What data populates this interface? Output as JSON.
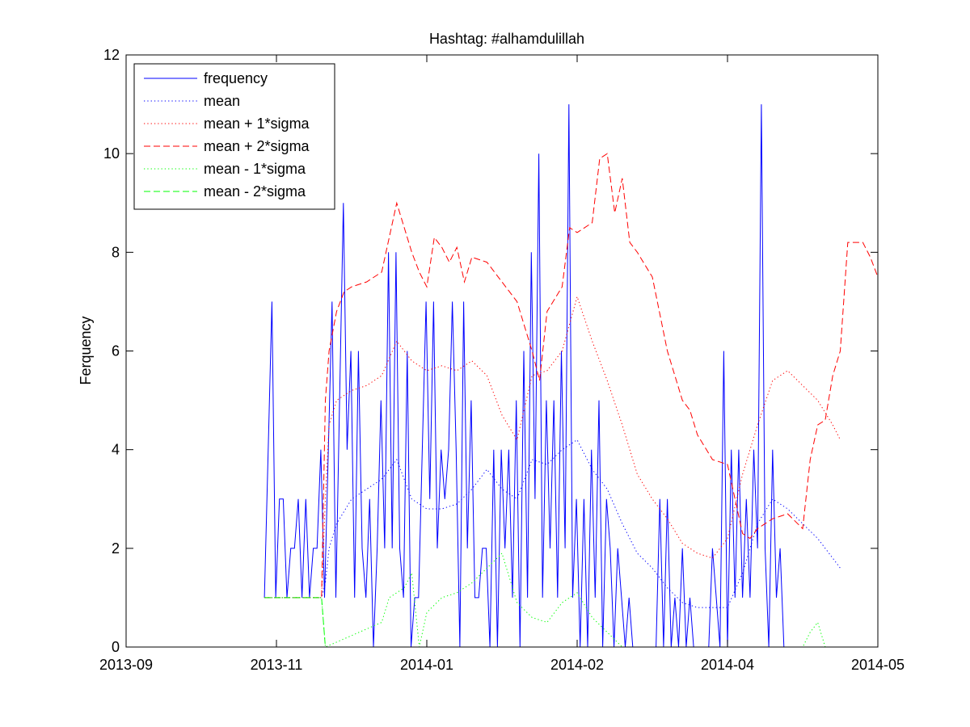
{
  "chart_data": {
    "type": "line",
    "title": "Hashtag: #alhamdulillah",
    "xlabel": "",
    "ylabel": "Ferquency",
    "xlim": [
      0,
      100
    ],
    "ylim": [
      0,
      12
    ],
    "xticks": [
      {
        "pos": 0,
        "label": "2013-09"
      },
      {
        "pos": 20,
        "label": "2013-11"
      },
      {
        "pos": 40,
        "label": "2014-01"
      },
      {
        "pos": 60,
        "label": "2014-02"
      },
      {
        "pos": 80,
        "label": "2014-04"
      },
      {
        "pos": 100,
        "label": "2014-05"
      }
    ],
    "yticks": [
      0,
      2,
      4,
      6,
      8,
      10,
      12
    ],
    "grid": false,
    "legend_position": "top-left",
    "series": [
      {
        "name": "frequency",
        "color": "#0000ff",
        "style": "solid",
        "points": [
          [
            18.4,
            1
          ],
          [
            18.9,
            4
          ],
          [
            19.4,
            7
          ],
          [
            19.9,
            1
          ],
          [
            20.4,
            3
          ],
          [
            20.9,
            3
          ],
          [
            21.4,
            1
          ],
          [
            21.9,
            2
          ],
          [
            22.4,
            2
          ],
          [
            22.9,
            3
          ],
          [
            23.4,
            1
          ],
          [
            23.9,
            3
          ],
          [
            24.4,
            1
          ],
          [
            24.9,
            2
          ],
          [
            25.4,
            2
          ],
          [
            25.9,
            4
          ],
          [
            26.4,
            1
          ],
          [
            26.9,
            4
          ],
          [
            27.4,
            7
          ],
          [
            27.9,
            1
          ],
          [
            28.4,
            5
          ],
          [
            28.9,
            9
          ],
          [
            29.4,
            4
          ],
          [
            29.9,
            6
          ],
          [
            30.4,
            1
          ],
          [
            30.9,
            6
          ],
          [
            31.4,
            2
          ],
          [
            31.9,
            1
          ],
          [
            32.4,
            3
          ],
          [
            32.9,
            0
          ],
          [
            33.4,
            2
          ],
          [
            33.9,
            5
          ],
          [
            34.4,
            2
          ],
          [
            34.9,
            8
          ],
          [
            35.4,
            2
          ],
          [
            35.9,
            8
          ],
          [
            36.4,
            2
          ],
          [
            36.9,
            1
          ],
          [
            37.4,
            6
          ],
          [
            37.9,
            0
          ],
          [
            38.4,
            1
          ],
          [
            38.9,
            1
          ],
          [
            39.4,
            4
          ],
          [
            39.9,
            7
          ],
          [
            40.4,
            3
          ],
          [
            40.9,
            7
          ],
          [
            41.4,
            2
          ],
          [
            41.9,
            4
          ],
          [
            42.4,
            3
          ],
          [
            42.9,
            4
          ],
          [
            43.4,
            7
          ],
          [
            43.9,
            4
          ],
          [
            44.4,
            0
          ],
          [
            44.9,
            7
          ],
          [
            45.4,
            2
          ],
          [
            45.9,
            5
          ],
          [
            46.4,
            1
          ],
          [
            46.9,
            1
          ],
          [
            47.4,
            2
          ],
          [
            47.9,
            2
          ],
          [
            48.4,
            0
          ],
          [
            48.9,
            4
          ],
          [
            49.4,
            0
          ],
          [
            49.9,
            4
          ],
          [
            50.4,
            2
          ],
          [
            50.9,
            4
          ],
          [
            51.4,
            1
          ],
          [
            51.9,
            5
          ],
          [
            52.4,
            0
          ],
          [
            52.9,
            6
          ],
          [
            53.4,
            1
          ],
          [
            53.9,
            8
          ],
          [
            54.4,
            3
          ],
          [
            54.9,
            10
          ],
          [
            55.4,
            1
          ],
          [
            55.9,
            5
          ],
          [
            56.4,
            2
          ],
          [
            56.9,
            5
          ],
          [
            57.4,
            1
          ],
          [
            57.9,
            6
          ],
          [
            58.4,
            2
          ],
          [
            58.9,
            11
          ],
          [
            59.4,
            1
          ],
          [
            59.9,
            3
          ],
          [
            60.4,
            0
          ],
          [
            60.9,
            3
          ],
          [
            61.4,
            0
          ],
          [
            61.9,
            4
          ],
          [
            62.4,
            1
          ],
          [
            62.9,
            5
          ],
          [
            63.4,
            0
          ],
          [
            63.9,
            3
          ],
          [
            64.4,
            2
          ],
          [
            64.9,
            0
          ],
          [
            65.4,
            2
          ],
          [
            65.9,
            1
          ],
          [
            66.4,
            0
          ],
          [
            66.9,
            1
          ],
          [
            67.4,
            0
          ],
          [
            67.9,
            0
          ],
          [
            68.4,
            0
          ],
          [
            70.5,
            0
          ],
          [
            71.0,
            3
          ],
          [
            71.5,
            0
          ],
          [
            72.0,
            3
          ],
          [
            72.5,
            0
          ],
          [
            73.0,
            1
          ],
          [
            73.5,
            0
          ],
          [
            74.0,
            2
          ],
          [
            74.5,
            0
          ],
          [
            75.0,
            1
          ],
          [
            75.5,
            0
          ],
          [
            76.0,
            0
          ],
          [
            77.5,
            0
          ],
          [
            78.0,
            2
          ],
          [
            78.5,
            1
          ],
          [
            79.0,
            0
          ],
          [
            79.5,
            6
          ],
          [
            80.0,
            0
          ],
          [
            80.5,
            4
          ],
          [
            81.0,
            1
          ],
          [
            81.5,
            4
          ],
          [
            82.0,
            1
          ],
          [
            82.5,
            3
          ],
          [
            83.0,
            1
          ],
          [
            83.5,
            4
          ],
          [
            84.0,
            2
          ],
          [
            84.5,
            11
          ],
          [
            85.0,
            2
          ],
          [
            85.5,
            0
          ],
          [
            86.0,
            4
          ],
          [
            86.5,
            1
          ],
          [
            87.0,
            2
          ],
          [
            87.5,
            0
          ]
        ]
      },
      {
        "name": "mean",
        "color": "#0000ff",
        "style": "dotted",
        "points": [
          [
            18.4,
            1
          ],
          [
            26.0,
            1
          ],
          [
            26.5,
            1.3
          ],
          [
            27,
            2
          ],
          [
            28,
            2.5
          ],
          [
            30,
            3
          ],
          [
            32,
            3.2
          ],
          [
            34,
            3.4
          ],
          [
            36,
            3.8
          ],
          [
            38,
            3.0
          ],
          [
            40,
            2.8
          ],
          [
            42,
            2.8
          ],
          [
            44,
            2.9
          ],
          [
            46,
            3.2
          ],
          [
            48,
            3.6
          ],
          [
            50,
            3.2
          ],
          [
            52,
            3.0
          ],
          [
            54,
            3.8
          ],
          [
            56,
            3.7
          ],
          [
            58,
            4.0
          ],
          [
            60,
            4.2
          ],
          [
            62,
            3.6
          ],
          [
            64,
            3.2
          ],
          [
            66,
            2.5
          ],
          [
            68,
            1.9
          ],
          [
            70,
            1.6
          ],
          [
            72,
            1.2
          ],
          [
            74,
            0.9
          ],
          [
            76,
            0.8
          ],
          [
            78,
            0.8
          ],
          [
            80,
            0.8
          ],
          [
            82,
            1.5
          ],
          [
            84,
            2.5
          ],
          [
            86,
            3.0
          ],
          [
            88,
            2.8
          ],
          [
            90,
            2.5
          ],
          [
            92,
            2.2
          ],
          [
            94,
            1.8
          ],
          [
            95,
            1.6
          ]
        ]
      },
      {
        "name": "mean + 1*sigma",
        "color": "#ff0000",
        "style": "dotted",
        "points": [
          [
            18.4,
            1
          ],
          [
            26.0,
            1
          ],
          [
            26.5,
            3
          ],
          [
            27,
            4.5
          ],
          [
            28,
            5
          ],
          [
            30,
            5.2
          ],
          [
            32,
            5.3
          ],
          [
            34,
            5.5
          ],
          [
            36,
            6.2
          ],
          [
            38,
            5.8
          ],
          [
            40,
            5.6
          ],
          [
            42,
            5.7
          ],
          [
            44,
            5.6
          ],
          [
            46,
            5.8
          ],
          [
            48,
            5.5
          ],
          [
            50,
            4.7
          ],
          [
            52,
            4.2
          ],
          [
            54,
            5.5
          ],
          [
            56,
            5.6
          ],
          [
            58,
            6.0
          ],
          [
            60,
            7.1
          ],
          [
            62,
            6.2
          ],
          [
            64,
            5.4
          ],
          [
            66,
            4.5
          ],
          [
            68,
            3.5
          ],
          [
            70,
            3.0
          ],
          [
            72,
            2.6
          ],
          [
            74,
            2.1
          ],
          [
            76,
            1.9
          ],
          [
            78,
            1.8
          ],
          [
            80,
            2.2
          ],
          [
            82,
            3.5
          ],
          [
            84,
            4.5
          ],
          [
            86,
            5.4
          ],
          [
            88,
            5.6
          ],
          [
            90,
            5.3
          ],
          [
            92,
            5.0
          ],
          [
            94,
            4.5
          ],
          [
            95,
            4.2
          ]
        ]
      },
      {
        "name": "mean + 2*sigma",
        "color": "#ff0000",
        "style": "dashed",
        "points": [
          [
            18.4,
            1
          ],
          [
            26.0,
            1
          ],
          [
            26.5,
            5
          ],
          [
            27,
            6.0
          ],
          [
            28,
            6.8
          ],
          [
            29,
            7.2
          ],
          [
            30,
            7.3
          ],
          [
            32,
            7.4
          ],
          [
            34,
            7.6
          ],
          [
            36,
            9.0
          ],
          [
            38,
            8.0
          ],
          [
            39,
            7.6
          ],
          [
            40,
            7.3
          ],
          [
            41,
            8.3
          ],
          [
            42,
            8.1
          ],
          [
            43,
            7.8
          ],
          [
            44,
            8.1
          ],
          [
            45,
            7.4
          ],
          [
            46,
            7.9
          ],
          [
            48,
            7.8
          ],
          [
            50,
            7.4
          ],
          [
            52,
            7.0
          ],
          [
            54,
            6.0
          ],
          [
            55,
            5.4
          ],
          [
            56,
            6.8
          ],
          [
            58,
            7.3
          ],
          [
            59,
            8.5
          ],
          [
            60,
            8.4
          ],
          [
            61,
            8.5
          ],
          [
            62,
            8.6
          ],
          [
            63,
            9.9
          ],
          [
            64,
            10.0
          ],
          [
            65,
            8.8
          ],
          [
            66,
            9.5
          ],
          [
            67,
            8.2
          ],
          [
            68,
            8.0
          ],
          [
            70,
            7.5
          ],
          [
            72,
            6.0
          ],
          [
            74,
            5.0
          ],
          [
            75,
            4.8
          ],
          [
            76,
            4.3
          ],
          [
            78,
            3.8
          ],
          [
            80,
            3.7
          ],
          [
            82,
            2.3
          ],
          [
            83,
            2.2
          ],
          [
            84,
            2.4
          ],
          [
            86,
            2.6
          ],
          [
            88,
            2.7
          ],
          [
            90,
            2.4
          ],
          [
            91,
            3.8
          ],
          [
            92,
            4.5
          ],
          [
            93,
            4.6
          ],
          [
            94,
            5.5
          ],
          [
            95,
            6.0
          ],
          [
            96,
            8.2
          ],
          [
            98,
            8.2
          ],
          [
            99,
            7.9
          ],
          [
            100,
            7.5
          ],
          [
            101,
            6.8
          ]
        ]
      },
      {
        "name": "mean - 1*sigma",
        "color": "#00ff00",
        "style": "dotted",
        "points": [
          [
            18.4,
            1
          ],
          [
            26.0,
            1
          ],
          [
            26.5,
            0
          ],
          [
            34,
            0.5
          ],
          [
            35,
            1.0
          ],
          [
            37,
            1.2
          ],
          [
            38,
            1.5
          ],
          [
            39,
            0
          ],
          [
            40,
            0.7
          ],
          [
            42,
            1.0
          ],
          [
            44,
            1.1
          ],
          [
            46,
            1.3
          ],
          [
            48,
            1.6
          ],
          [
            50,
            1.9
          ],
          [
            52,
            0.9
          ],
          [
            54,
            0.6
          ],
          [
            56,
            0.5
          ],
          [
            58,
            0.9
          ],
          [
            60,
            1.1
          ],
          [
            62,
            0.6
          ],
          [
            66,
            0
          ],
          [
            90,
            0
          ],
          [
            91,
            0.3
          ],
          [
            92,
            0.5
          ],
          [
            93,
            0
          ]
        ]
      },
      {
        "name": "mean - 2*sigma",
        "color": "#00ff00",
        "style": "dashed",
        "points": [
          [
            18.4,
            1
          ],
          [
            26.0,
            1
          ],
          [
            26.5,
            0
          ]
        ]
      }
    ]
  }
}
